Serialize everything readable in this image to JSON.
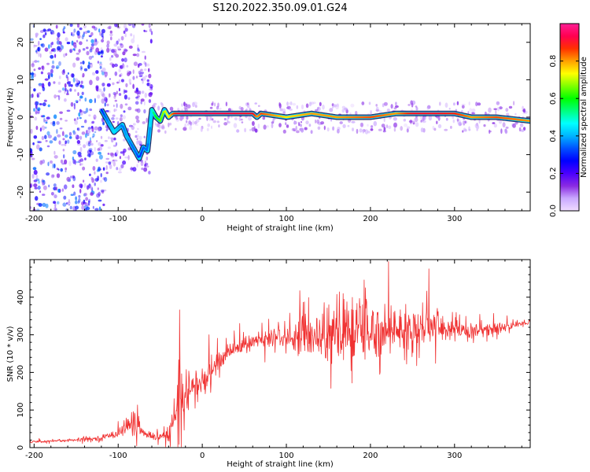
{
  "title": "S120.2022.350.09.01.G24",
  "chart_data": [
    {
      "type": "heatmap",
      "xlabel": "Height of straight line (km)",
      "ylabel": "Frequency (Hz)",
      "xlim": [
        -205,
        390
      ],
      "ylim": [
        -25,
        25
      ],
      "x_ticks": [
        -200,
        -100,
        0,
        100,
        200,
        300
      ],
      "y_ticks": [
        -20,
        -10,
        0,
        10,
        20
      ],
      "colorbar": {
        "label": "Normalized spectral amplitude",
        "range": [
          0,
          1
        ],
        "ticks": [
          0.0,
          0.2,
          0.4,
          0.6,
          0.8
        ],
        "colors": [
          "#f0dcff",
          "#c9a8ff",
          "#8a2be2",
          "#4b00ff",
          "#0000ff",
          "#0050ff",
          "#00b4ff",
          "#00ffff",
          "#00ff80",
          "#00ff00",
          "#80ff00",
          "#ffff00",
          "#ffa000",
          "#ff3000",
          "#ff0050",
          "#ff1e96"
        ]
      },
      "ridge": {
        "x": [
          -120,
          -115,
          -110,
          -105,
          -100,
          -95,
          -90,
          -85,
          -80,
          -75,
          -70,
          -65,
          -60,
          -55,
          -50,
          -45,
          -40,
          -35,
          -30,
          -20,
          0,
          30,
          60,
          65,
          70,
          100,
          130,
          160,
          200,
          230,
          250,
          280,
          300,
          320,
          350,
          390
        ],
        "y": [
          2,
          0,
          -2,
          -4,
          -3,
          -2,
          -5,
          -7,
          -9,
          -11,
          -8,
          -9,
          2,
          0,
          -1,
          2,
          0,
          1,
          1,
          1,
          1,
          1,
          1,
          0,
          1,
          0,
          1,
          0,
          0,
          1,
          1,
          1,
          1,
          0,
          0,
          -1
        ],
        "amplitude": [
          0.3,
          0.35,
          0.4,
          0.45,
          0.4,
          0.35,
          0.4,
          0.35,
          0.35,
          0.3,
          0.35,
          0.35,
          0.5,
          0.6,
          0.65,
          0.7,
          0.75,
          0.85,
          0.9,
          0.92,
          0.93,
          0.92,
          0.9,
          0.8,
          0.85,
          0.75,
          0.8,
          0.8,
          0.85,
          0.8,
          0.9,
          0.9,
          0.88,
          0.8,
          0.85,
          0.8
        ]
      },
      "noise_regions": [
        {
          "x_range": [
            -205,
            -115
          ],
          "y_range": [
            -25,
            25
          ],
          "level": 0.25
        },
        {
          "x_range": [
            -115,
            -60
          ],
          "y_range": [
            -15,
            25
          ],
          "level": 0.15
        },
        {
          "x_range": [
            -60,
            390
          ],
          "y_range": [
            -4,
            4
          ],
          "level": 0.1
        }
      ]
    },
    {
      "type": "line",
      "xlabel": "Height of straight line (km)",
      "ylabel": "SNR (10 * v/v)",
      "xlim": [
        -205,
        390
      ],
      "ylim": [
        0,
        500
      ],
      "x_ticks": [
        -200,
        -100,
        0,
        100,
        200,
        300
      ],
      "y_ticks": [
        0,
        100,
        200,
        300,
        400
      ],
      "color": "#f03232",
      "series": [
        {
          "x": [
            -205,
            -180,
            -150,
            -120,
            -100,
            -90,
            -85,
            -80,
            -75,
            -70,
            -65,
            -60,
            -50,
            -40,
            -35,
            -30,
            -25,
            -20,
            -10,
            0,
            10,
            20,
            30,
            50,
            80,
            100,
            120,
            140,
            160,
            180,
            200,
            220,
            240,
            260,
            280,
            300,
            320,
            340,
            360,
            380,
            390
          ],
          "y": [
            15,
            18,
            20,
            25,
            40,
            55,
            65,
            70,
            50,
            40,
            30,
            25,
            30,
            30,
            60,
            110,
            140,
            150,
            160,
            170,
            200,
            230,
            255,
            275,
            290,
            295,
            300,
            300,
            300,
            310,
            310,
            315,
            315,
            320,
            320,
            315,
            310,
            315,
            320,
            330,
            335
          ],
          "spread": [
            4,
            5,
            6,
            8,
            15,
            30,
            40,
            40,
            25,
            15,
            10,
            8,
            12,
            30,
            60,
            90,
            110,
            80,
            60,
            50,
            40,
            30,
            25,
            25,
            30,
            40,
            60,
            80,
            110,
            120,
            90,
            80,
            70,
            60,
            50,
            40,
            30,
            25,
            15,
            10,
            10
          ]
        }
      ]
    }
  ]
}
